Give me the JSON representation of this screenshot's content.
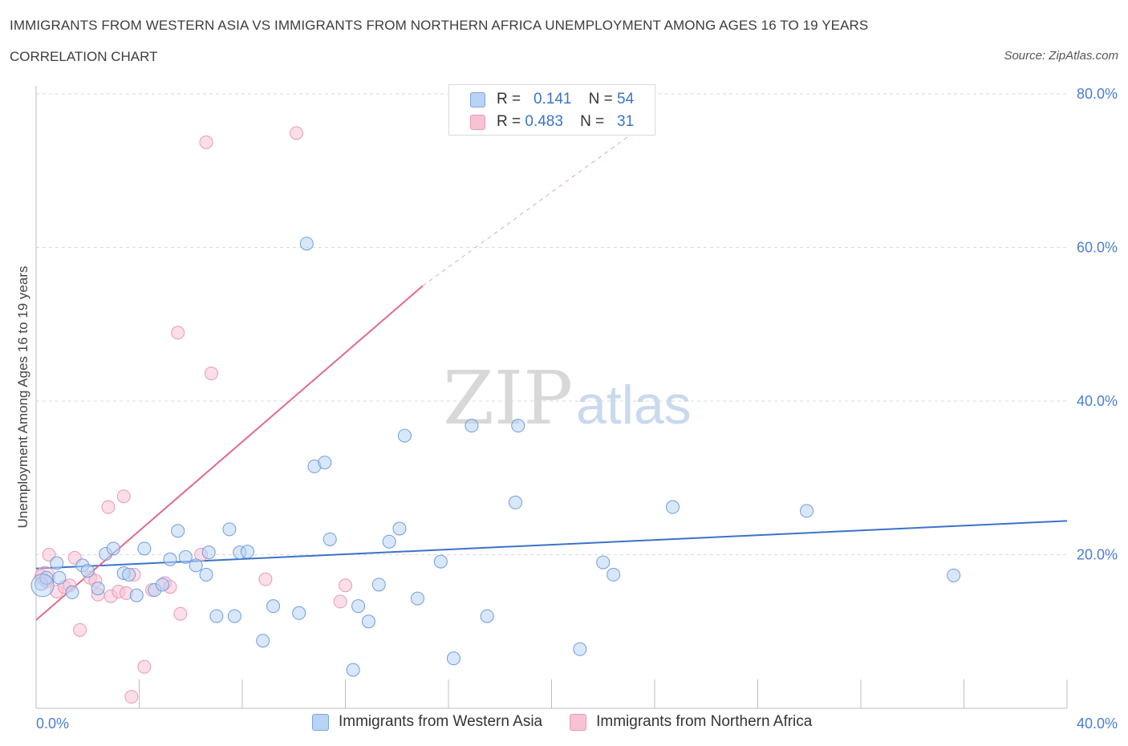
{
  "header": {
    "title": "IMMIGRANTS FROM WESTERN ASIA VS IMMIGRANTS FROM NORTHERN AFRICA UNEMPLOYMENT AMONG AGES 16 TO 19 YEARS",
    "subtitle": "CORRELATION CHART",
    "source": "Source: ZipAtlas.com"
  },
  "legend": {
    "rows": [
      {
        "r_label": "R =",
        "r_value": "0.141",
        "n_label": "N =",
        "n_value": "54"
      },
      {
        "r_label": "R =",
        "r_value": "0.483",
        "n_label": "N =",
        "n_value": "31"
      }
    ]
  },
  "bottom_legend": {
    "items": [
      "Immigrants from Western Asia",
      "Immigrants from Northern Africa"
    ]
  },
  "watermark": {
    "zip": "ZIP",
    "atlas": "atlas"
  },
  "colors": {
    "series_blue": "#3a73c9",
    "series_blue_fill": "#b9d3f5",
    "series_pink": "#e06a92",
    "series_pink_fill": "#f7c3d3",
    "tick_text": "#4a7fd0",
    "grid": "#d9d9d9"
  },
  "chart_data": {
    "type": "scatter",
    "title": "IMMIGRANTS FROM WESTERN ASIA VS IMMIGRANTS FROM NORTHERN AFRICA UNEMPLOYMENT AMONG AGES 16 TO 19 YEARS",
    "xlabel": "",
    "ylabel": "Unemployment Among Ages 16 to 19 years",
    "xlim": [
      0,
      40
    ],
    "ylim": [
      0,
      80
    ],
    "x_tick_labels": [
      {
        "value": 0,
        "label": "0.0%"
      },
      {
        "value": 40,
        "label": "40.0%"
      }
    ],
    "y_tick_labels": [
      {
        "value": 20,
        "label": "20.0%"
      },
      {
        "value": 40,
        "label": "40.0%"
      },
      {
        "value": 60,
        "label": "60.0%"
      },
      {
        "value": 80,
        "label": "80.0%"
      }
    ],
    "grid": "horizontal dashed",
    "legend_placement": "top-center",
    "series": [
      {
        "name": "Immigrants from Western Asia",
        "color": "#3a73c9",
        "R": 0.141,
        "N": 54,
        "trend": {
          "x": [
            0,
            40
          ],
          "y": [
            18.2,
            24.4
          ]
        },
        "points": [
          [
            0.2,
            16.2
          ],
          [
            0.4,
            17.0
          ],
          [
            0.8,
            18.9
          ],
          [
            0.9,
            17.0
          ],
          [
            1.4,
            15.1
          ],
          [
            1.8,
            18.6
          ],
          [
            2.0,
            17.9
          ],
          [
            2.4,
            15.6
          ],
          [
            2.7,
            20.1
          ],
          [
            3.0,
            20.8
          ],
          [
            3.4,
            17.6
          ],
          [
            3.6,
            17.4
          ],
          [
            3.9,
            14.7
          ],
          [
            4.2,
            20.8
          ],
          [
            4.6,
            15.4
          ],
          [
            4.9,
            16.1
          ],
          [
            5.2,
            19.4
          ],
          [
            5.5,
            23.1
          ],
          [
            5.8,
            19.7
          ],
          [
            6.2,
            18.6
          ],
          [
            6.6,
            17.4
          ],
          [
            6.7,
            20.3
          ],
          [
            7.0,
            12.0
          ],
          [
            7.5,
            23.3
          ],
          [
            7.7,
            12.0
          ],
          [
            7.9,
            20.3
          ],
          [
            8.2,
            20.4
          ],
          [
            8.8,
            8.8
          ],
          [
            9.2,
            13.3
          ],
          [
            10.2,
            12.4
          ],
          [
            10.5,
            60.5
          ],
          [
            10.8,
            31.5
          ],
          [
            11.2,
            32.0
          ],
          [
            11.4,
            22.0
          ],
          [
            12.3,
            5.0
          ],
          [
            12.5,
            13.3
          ],
          [
            12.9,
            11.3
          ],
          [
            13.3,
            16.1
          ],
          [
            13.7,
            21.7
          ],
          [
            14.1,
            23.4
          ],
          [
            14.3,
            35.5
          ],
          [
            14.8,
            14.3
          ],
          [
            15.7,
            19.1
          ],
          [
            16.2,
            6.5
          ],
          [
            16.9,
            36.8
          ],
          [
            17.5,
            12.0
          ],
          [
            18.6,
            26.8
          ],
          [
            18.7,
            36.8
          ],
          [
            21.1,
            7.7
          ],
          [
            22.0,
            19.0
          ],
          [
            22.4,
            17.4
          ],
          [
            24.7,
            26.2
          ],
          [
            29.9,
            25.7
          ],
          [
            35.6,
            17.3
          ]
        ]
      },
      {
        "name": "Immigrants from Northern Africa",
        "color": "#e06a92",
        "R": 0.483,
        "N": 31,
        "trend": {
          "x": [
            0,
            15.0
          ],
          "y": [
            11.5,
            55.0
          ]
        },
        "trend_extended": {
          "x": [
            15.0,
            23.2
          ],
          "y": [
            55.0,
            75.0
          ]
        },
        "points": [
          [
            0.2,
            17.2
          ],
          [
            0.4,
            16.5
          ],
          [
            0.5,
            20.0
          ],
          [
            0.8,
            15.2
          ],
          [
            1.1,
            15.8
          ],
          [
            1.3,
            16.0
          ],
          [
            1.5,
            19.6
          ],
          [
            1.7,
            10.2
          ],
          [
            2.1,
            17.0
          ],
          [
            2.3,
            16.6
          ],
          [
            2.4,
            14.8
          ],
          [
            2.8,
            26.2
          ],
          [
            2.9,
            14.6
          ],
          [
            3.2,
            15.2
          ],
          [
            3.4,
            27.6
          ],
          [
            3.5,
            15.0
          ],
          [
            3.7,
            1.5
          ],
          [
            3.8,
            17.4
          ],
          [
            4.2,
            5.4
          ],
          [
            4.5,
            15.4
          ],
          [
            5.0,
            16.3
          ],
          [
            5.2,
            15.8
          ],
          [
            5.6,
            12.3
          ],
          [
            5.5,
            48.9
          ],
          [
            6.6,
            73.7
          ],
          [
            6.8,
            43.6
          ],
          [
            6.4,
            20.0
          ],
          [
            8.9,
            16.8
          ],
          [
            10.1,
            74.9
          ],
          [
            11.8,
            13.9
          ],
          [
            12.0,
            16.0
          ]
        ]
      }
    ]
  },
  "axis": {
    "ylabel": "Unemployment Among Ages 16 to 19 years"
  }
}
